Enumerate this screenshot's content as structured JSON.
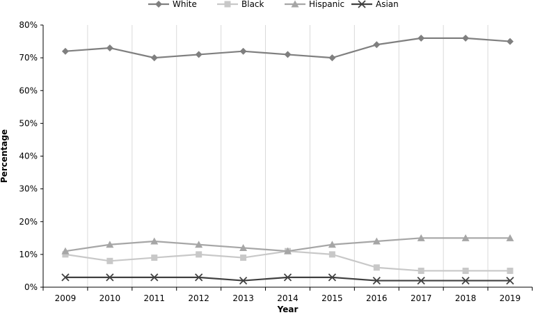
{
  "chart_data": {
    "type": "line",
    "title": "",
    "xlabel": "Year",
    "ylabel": "Percentage",
    "categories": [
      "2009",
      "2010",
      "2011",
      "2012",
      "2013",
      "2014",
      "2015",
      "2016",
      "2017",
      "2018",
      "2019"
    ],
    "y_ticks": [
      "0%",
      "10%",
      "20%",
      "30%",
      "40%",
      "50%",
      "60%",
      "70%",
      "80%"
    ],
    "ylim": [
      0,
      80
    ],
    "y_unit": "%",
    "grid": "vertical",
    "legend_position": "top",
    "series": [
      {
        "name": "White",
        "color": "#7f7f7f",
        "marker": "diamond",
        "values": [
          72,
          73,
          70,
          71,
          72,
          71,
          70,
          74,
          76,
          76,
          75
        ]
      },
      {
        "name": "Black",
        "color": "#c8c8c8",
        "marker": "square",
        "values": [
          10,
          8,
          9,
          10,
          9,
          11,
          10,
          6,
          5,
          5,
          5
        ]
      },
      {
        "name": "Hispanic",
        "color": "#a6a6a6",
        "marker": "triangle",
        "values": [
          11,
          13,
          14,
          13,
          12,
          11,
          13,
          14,
          15,
          15,
          15
        ]
      },
      {
        "name": "Asian",
        "color": "#404040",
        "marker": "x",
        "values": [
          3,
          3,
          3,
          3,
          2,
          3,
          3,
          2,
          2,
          2,
          2
        ]
      }
    ]
  }
}
